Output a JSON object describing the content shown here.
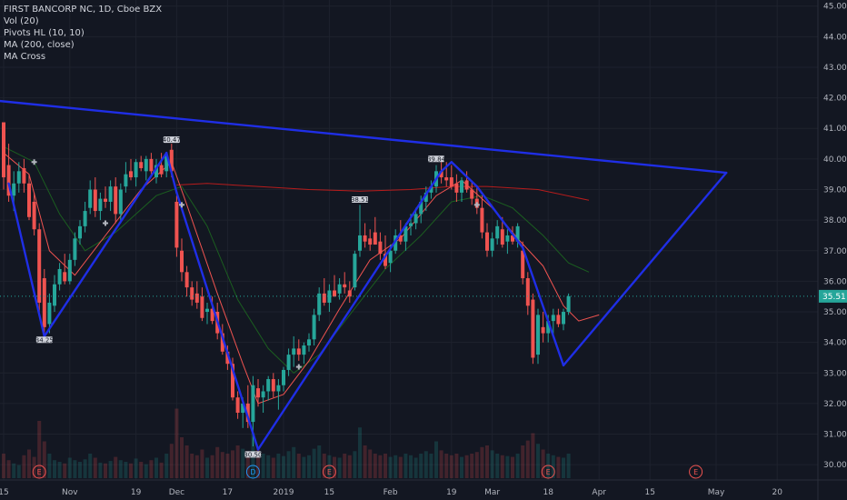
{
  "legend": {
    "symbol": "FIRST BANCORP NC, 1D, Cboe BZX",
    "indicators": [
      "Vol (20)",
      "Pivots HL (10, 10)",
      "MA (200, close)",
      "MA Cross"
    ]
  },
  "colors": {
    "background": "#131722",
    "grid": "#1e222d",
    "up": "#26a69a",
    "down": "#ef5350",
    "trendline": "#1f2ee6",
    "ma200": "#b71c1c",
    "ma_fast": "#ef5350",
    "ma_slow": "#1b5e20",
    "price_label": "#26a69a"
  },
  "chart_data": {
    "type": "candlestick",
    "y_axis": {
      "range": [
        29.5,
        45.2
      ],
      "ticks": [
        "45.00",
        "44.00",
        "43.00",
        "42.00",
        "41.00",
        "40.00",
        "39.00",
        "38.00",
        "37.00",
        "36.00",
        "35.00",
        "34.00",
        "33.00",
        "32.00",
        "31.00",
        "30.00"
      ]
    },
    "x_axis": {
      "ticks": [
        {
          "label": "15",
          "day": 0
        },
        {
          "label": "Nov",
          "day": 13
        },
        {
          "label": "19",
          "day": 26
        },
        {
          "label": "Dec",
          "day": 34
        },
        {
          "label": "17",
          "day": 44
        },
        {
          "label": "2019",
          "day": 55
        },
        {
          "label": "15",
          "day": 64
        },
        {
          "label": "Feb",
          "day": 76
        },
        {
          "label": "19",
          "day": 88
        },
        {
          "label": "Mar",
          "day": 96
        },
        {
          "label": "18",
          "day": 107
        },
        {
          "label": "Apr",
          "day": 117
        },
        {
          "label": "15",
          "day": 127
        },
        {
          "label": "May",
          "day": 140
        },
        {
          "label": "20",
          "day": 152
        }
      ]
    },
    "last_price": "35.51",
    "candles": [
      [
        41.2,
        41.1,
        39.0,
        39.4
      ],
      [
        39.8,
        40.5,
        38.6,
        38.8
      ],
      [
        38.8,
        39.6,
        38.3,
        39.2
      ],
      [
        39.2,
        39.9,
        38.9,
        39.6
      ],
      [
        39.7,
        40.0,
        38.9,
        39.2
      ],
      [
        39.2,
        39.5,
        38.0,
        38.1
      ],
      [
        38.6,
        38.9,
        37.5,
        37.7
      ],
      [
        37.7,
        37.9,
        35.0,
        35.3
      ],
      [
        36.1,
        36.4,
        34.2,
        34.5
      ],
      [
        34.6,
        35.6,
        34.3,
        35.3
      ],
      [
        35.2,
        36.2,
        35.0,
        35.9
      ],
      [
        35.9,
        36.6,
        35.7,
        36.4
      ],
      [
        36.3,
        36.9,
        35.9,
        36.0
      ],
      [
        36.0,
        36.9,
        35.9,
        36.7
      ],
      [
        36.7,
        37.6,
        36.5,
        37.4
      ],
      [
        37.4,
        38.0,
        37.2,
        37.8
      ],
      [
        37.8,
        38.6,
        37.6,
        38.3
      ],
      [
        38.4,
        39.3,
        38.2,
        39.0
      ],
      [
        39.0,
        39.4,
        38.1,
        38.3
      ],
      [
        38.3,
        38.9,
        38.0,
        38.7
      ],
      [
        38.7,
        39.1,
        38.4,
        38.6
      ],
      [
        38.6,
        39.3,
        38.3,
        39.1
      ],
      [
        39.1,
        39.4,
        37.9,
        38.2
      ],
      [
        38.2,
        39.2,
        37.9,
        39.0
      ],
      [
        39.1,
        39.9,
        38.9,
        39.5
      ],
      [
        39.6,
        40.0,
        39.3,
        39.4
      ],
      [
        39.4,
        40.0,
        39.1,
        39.9
      ],
      [
        39.9,
        40.1,
        39.6,
        39.7
      ],
      [
        39.6,
        40.1,
        39.3,
        40.0
      ],
      [
        40.0,
        40.2,
        39.5,
        39.6
      ],
      [
        39.4,
        40.0,
        39.2,
        39.8
      ],
      [
        39.8,
        40.2,
        39.4,
        39.5
      ],
      [
        39.6,
        40.2,
        39.4,
        40.1
      ],
      [
        40.3,
        40.5,
        39.4,
        39.6
      ],
      [
        38.6,
        38.8,
        36.8,
        37.1
      ],
      [
        37.0,
        37.4,
        36.0,
        36.3
      ],
      [
        36.3,
        36.5,
        35.5,
        35.8
      ],
      [
        35.8,
        36.0,
        35.2,
        35.4
      ],
      [
        35.6,
        36.0,
        35.1,
        35.3
      ],
      [
        35.5,
        35.8,
        34.7,
        34.8
      ],
      [
        35.0,
        35.3,
        34.6,
        35.1
      ],
      [
        35.1,
        35.5,
        34.6,
        34.7
      ],
      [
        35.0,
        35.3,
        34.1,
        34.3
      ],
      [
        34.3,
        34.6,
        33.6,
        33.7
      ],
      [
        33.7,
        33.9,
        33.1,
        33.3
      ],
      [
        33.3,
        33.5,
        32.1,
        32.2
      ],
      [
        32.2,
        32.4,
        31.5,
        31.7
      ],
      [
        31.7,
        32.2,
        31.2,
        32.0
      ],
      [
        32.0,
        32.6,
        31.2,
        31.4
      ],
      [
        31.4,
        32.9,
        30.6,
        32.6
      ],
      [
        32.5,
        32.8,
        31.9,
        32.2
      ],
      [
        32.2,
        32.6,
        31.7,
        32.4
      ],
      [
        32.4,
        32.9,
        32.1,
        32.8
      ],
      [
        32.8,
        33.0,
        32.2,
        32.4
      ],
      [
        32.4,
        32.8,
        31.8,
        32.6
      ],
      [
        32.6,
        33.2,
        32.4,
        33.1
      ],
      [
        33.1,
        33.8,
        32.9,
        33.6
      ],
      [
        33.6,
        34.2,
        33.2,
        33.8
      ],
      [
        33.8,
        34.1,
        33.4,
        33.6
      ],
      [
        33.6,
        34.0,
        33.3,
        33.9
      ],
      [
        33.9,
        34.3,
        33.7,
        34.1
      ],
      [
        34.1,
        35.1,
        33.9,
        34.9
      ],
      [
        34.9,
        35.8,
        34.7,
        35.6
      ],
      [
        35.6,
        36.1,
        35.2,
        35.3
      ],
      [
        35.3,
        35.9,
        35.0,
        35.7
      ],
      [
        35.7,
        36.2,
        35.5,
        35.5
      ],
      [
        35.6,
        36.1,
        35.4,
        35.9
      ],
      [
        35.9,
        36.3,
        35.6,
        35.8
      ],
      [
        35.7,
        36.0,
        35.3,
        35.5
      ],
      [
        35.8,
        37.0,
        35.7,
        36.9
      ],
      [
        37.0,
        38.5,
        36.8,
        37.5
      ],
      [
        37.5,
        37.9,
        37.1,
        37.3
      ],
      [
        37.4,
        37.7,
        37.0,
        37.2
      ],
      [
        37.6,
        38.1,
        37.2,
        37.2
      ],
      [
        37.3,
        37.6,
        36.7,
        36.9
      ],
      [
        36.9,
        37.5,
        36.4,
        36.5
      ],
      [
        36.6,
        37.2,
        36.3,
        37.0
      ],
      [
        37.0,
        37.7,
        36.9,
        37.5
      ],
      [
        37.5,
        38.0,
        37.2,
        37.3
      ],
      [
        37.3,
        37.9,
        37.0,
        37.8
      ],
      [
        37.8,
        38.2,
        37.5,
        37.9
      ],
      [
        37.9,
        38.4,
        37.7,
        38.2
      ],
      [
        38.2,
        38.8,
        37.9,
        38.6
      ],
      [
        38.6,
        39.1,
        38.3,
        38.9
      ],
      [
        38.9,
        39.3,
        38.7,
        39.1
      ],
      [
        39.1,
        39.8,
        38.9,
        39.6
      ],
      [
        39.6,
        39.9,
        39.2,
        39.4
      ],
      [
        39.4,
        39.9,
        39.1,
        39.3
      ],
      [
        39.4,
        39.8,
        39.0,
        39.1
      ],
      [
        39.2,
        39.5,
        38.6,
        38.9
      ],
      [
        38.9,
        39.4,
        38.6,
        39.3
      ],
      [
        39.3,
        39.6,
        38.9,
        39.0
      ],
      [
        39.0,
        39.3,
        38.5,
        38.7
      ],
      [
        38.7,
        39.1,
        38.2,
        38.4
      ],
      [
        38.4,
        38.8,
        37.4,
        37.6
      ],
      [
        37.6,
        37.9,
        36.8,
        37.0
      ],
      [
        37.0,
        37.6,
        36.8,
        37.4
      ],
      [
        37.4,
        38.0,
        37.2,
        37.8
      ],
      [
        37.7,
        38.1,
        37.1,
        37.2
      ],
      [
        37.3,
        37.7,
        36.9,
        37.5
      ],
      [
        37.5,
        37.8,
        37.2,
        37.3
      ],
      [
        37.3,
        37.9,
        37.1,
        37.8
      ],
      [
        37.0,
        37.3,
        35.9,
        36.1
      ],
      [
        36.1,
        36.3,
        34.9,
        35.2
      ],
      [
        35.4,
        35.6,
        33.3,
        33.5
      ],
      [
        33.6,
        35.1,
        33.3,
        34.9
      ],
      [
        34.5,
        35.0,
        34.0,
        34.3
      ],
      [
        34.3,
        34.9,
        34.0,
        34.7
      ],
      [
        34.7,
        35.1,
        34.2,
        34.9
      ],
      [
        34.9,
        35.1,
        34.5,
        34.6
      ],
      [
        34.6,
        35.1,
        34.4,
        35.0
      ],
      [
        35.0,
        35.6,
        34.9,
        35.51
      ]
    ],
    "pivots": [
      {
        "label": "34.25",
        "day": 8,
        "value": 34.25,
        "position": "below"
      },
      {
        "label": "40.47",
        "day": 33,
        "value": 40.47,
        "position": "above"
      },
      {
        "label": "30.50",
        "day": 49,
        "value": 30.5,
        "position": "below"
      },
      {
        "label": "38.51",
        "day": 70,
        "value": 38.51,
        "position": "above"
      },
      {
        "label": "39.84",
        "day": 85,
        "value": 39.84,
        "position": "above"
      }
    ],
    "earnings_markers": [
      {
        "label": "E",
        "day": 7
      },
      {
        "label": "D",
        "day": 49
      },
      {
        "label": "E",
        "day": 64
      },
      {
        "label": "E",
        "day": 107
      },
      {
        "label": "E",
        "day": 136
      }
    ],
    "cross_markers": [
      {
        "day": 6,
        "value": 39.9
      },
      {
        "day": 20,
        "value": 37.9
      },
      {
        "day": 35,
        "value": 38.5
      },
      {
        "day": 58,
        "value": 33.2
      },
      {
        "day": 93,
        "value": 38.5
      }
    ],
    "trendlines": [
      [
        [
          -1,
          41.9
        ],
        [
          142,
          39.55
        ]
      ],
      [
        [
          142,
          39.55
        ],
        [
          110,
          33.25
        ]
      ],
      [
        [
          110,
          33.25
        ],
        [
          102,
          37.1
        ]
      ],
      [
        [
          102,
          37.1
        ],
        [
          93,
          39.1
        ]
      ],
      [
        [
          93,
          39.1
        ],
        [
          88,
          39.9
        ]
      ],
      [
        [
          88,
          39.9
        ],
        [
          86,
          39.6
        ]
      ],
      [
        [
          86,
          39.6
        ],
        [
          50,
          30.5
        ]
      ],
      [
        [
          50,
          30.5
        ],
        [
          34,
          38.9
        ]
      ],
      [
        [
          34,
          38.9
        ],
        [
          32,
          40.2
        ]
      ],
      [
        [
          32,
          40.2
        ],
        [
          8,
          34.2
        ]
      ],
      [
        [
          8,
          34.2
        ],
        [
          1,
          39.2
        ]
      ]
    ],
    "ma200": [
      [
        34,
        39.15
      ],
      [
        40,
        39.2
      ],
      [
        50,
        39.1
      ],
      [
        60,
        39.0
      ],
      [
        70,
        38.95
      ],
      [
        80,
        39.0
      ],
      [
        88,
        39.1
      ],
      [
        95,
        39.1
      ],
      [
        105,
        39.0
      ],
      [
        115,
        38.65
      ]
    ],
    "ma_fast": [
      [
        0,
        40.2
      ],
      [
        5,
        39.5
      ],
      [
        9,
        37.0
      ],
      [
        14,
        36.2
      ],
      [
        20,
        37.5
      ],
      [
        27,
        39.0
      ],
      [
        33,
        39.9
      ],
      [
        36,
        38.5
      ],
      [
        42,
        35.6
      ],
      [
        47,
        33.3
      ],
      [
        50,
        32.0
      ],
      [
        55,
        32.3
      ],
      [
        60,
        33.4
      ],
      [
        66,
        35.1
      ],
      [
        72,
        36.7
      ],
      [
        78,
        37.4
      ],
      [
        85,
        38.8
      ],
      [
        90,
        39.3
      ],
      [
        96,
        38.4
      ],
      [
        101,
        37.4
      ],
      [
        106,
        36.5
      ],
      [
        110,
        35.2
      ],
      [
        113,
        34.7
      ],
      [
        117,
        34.9
      ]
    ],
    "ma_slow": [
      [
        0,
        40.4
      ],
      [
        6,
        39.9
      ],
      [
        11,
        38.2
      ],
      [
        16,
        37.0
      ],
      [
        22,
        37.6
      ],
      [
        30,
        38.8
      ],
      [
        35,
        39.1
      ],
      [
        40,
        37.8
      ],
      [
        46,
        35.4
      ],
      [
        52,
        33.8
      ],
      [
        57,
        33.0
      ],
      [
        62,
        33.6
      ],
      [
        68,
        34.9
      ],
      [
        75,
        36.4
      ],
      [
        82,
        37.5
      ],
      [
        88,
        38.6
      ],
      [
        94,
        38.8
      ],
      [
        100,
        38.4
      ],
      [
        106,
        37.5
      ],
      [
        111,
        36.6
      ],
      [
        115,
        36.3
      ]
    ],
    "volume": [
      0.3,
      0.22,
      0.18,
      0.16,
      0.28,
      0.35,
      0.26,
      0.7,
      0.45,
      0.3,
      0.22,
      0.2,
      0.18,
      0.25,
      0.22,
      0.2,
      0.23,
      0.3,
      0.25,
      0.19,
      0.18,
      0.21,
      0.26,
      0.22,
      0.2,
      0.18,
      0.24,
      0.2,
      0.17,
      0.22,
      0.25,
      0.19,
      0.3,
      0.42,
      0.85,
      0.5,
      0.4,
      0.3,
      0.28,
      0.35,
      0.25,
      0.28,
      0.38,
      0.32,
      0.3,
      0.34,
      0.4,
      0.36,
      0.33,
      0.55,
      0.34,
      0.3,
      0.28,
      0.25,
      0.3,
      0.27,
      0.33,
      0.38,
      0.3,
      0.26,
      0.28,
      0.36,
      0.4,
      0.3,
      0.28,
      0.26,
      0.25,
      0.3,
      0.28,
      0.33,
      0.62,
      0.4,
      0.35,
      0.3,
      0.28,
      0.3,
      0.26,
      0.28,
      0.26,
      0.3,
      0.28,
      0.25,
      0.3,
      0.33,
      0.3,
      0.45,
      0.34,
      0.3,
      0.28,
      0.3,
      0.26,
      0.28,
      0.3,
      0.32,
      0.38,
      0.4,
      0.34,
      0.3,
      0.28,
      0.27,
      0.26,
      0.3,
      0.4,
      0.46,
      0.55,
      0.42,
      0.35,
      0.3,
      0.28,
      0.26,
      0.25,
      0.3
    ]
  }
}
